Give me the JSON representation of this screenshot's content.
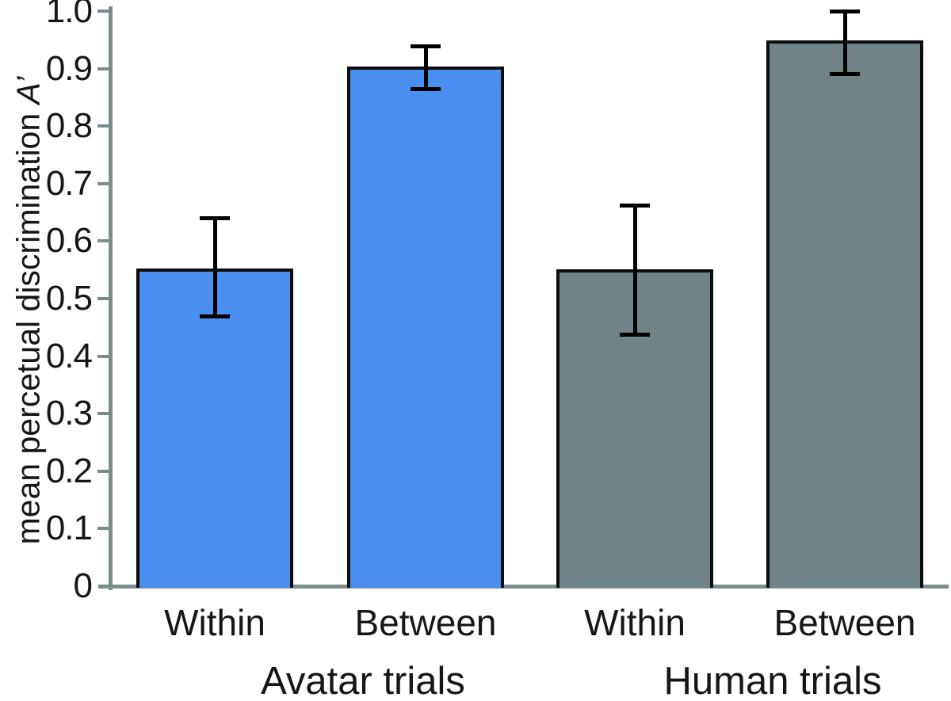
{
  "chart_data": {
    "type": "bar",
    "title": "",
    "xlabel": "",
    "ylabel": "mean percetual discrimination A’",
    "ylabel_main": "mean percetual discrimination ",
    "ylabel_term": "A’",
    "ylim": [
      0,
      1.0
    ],
    "grid": false,
    "legend": false,
    "yticks": [
      {
        "value": 1.0,
        "label": "1.0"
      },
      {
        "value": 0.9,
        "label": "0.9"
      },
      {
        "value": 0.8,
        "label": "0.8"
      },
      {
        "value": 0.7,
        "label": "0.7"
      },
      {
        "value": 0.6,
        "label": "0.6"
      },
      {
        "value": 0.5,
        "label": "0.5"
      },
      {
        "value": 0.4,
        "label": "0.4"
      },
      {
        "value": 0.3,
        "label": "0.3"
      },
      {
        "value": 0.2,
        "label": "0.2"
      },
      {
        "value": 0.1,
        "label": "0.1"
      },
      {
        "value": 0.0,
        "label": "0"
      }
    ],
    "categories": [
      "Within",
      "Between",
      "Within",
      "Between"
    ],
    "group_labels": [
      "Avatar trials",
      "Human trials"
    ],
    "series": [
      {
        "name": "Avatar trials",
        "color": "#4a8ef0",
        "bars": [
          {
            "category": "Within",
            "value": 0.553,
            "err_low": 0.468,
            "err_high": 0.64
          },
          {
            "category": "Between",
            "value": 0.903,
            "err_low": 0.863,
            "err_high": 0.94
          }
        ]
      },
      {
        "name": "Human trials",
        "color": "#708487",
        "bars": [
          {
            "category": "Within",
            "value": 0.551,
            "err_low": 0.436,
            "err_high": 0.662
          },
          {
            "category": "Between",
            "value": 0.949,
            "err_low": 0.89,
            "err_high": 1.0
          }
        ]
      }
    ],
    "colors": {
      "avatar_bar": "#4a8ef0",
      "human_bar": "#708487",
      "axis": "#7c8c8c",
      "bar_border": "#0c0c0c",
      "error_bar": "#000000",
      "text": "#161616",
      "background": "#ffffff"
    }
  }
}
